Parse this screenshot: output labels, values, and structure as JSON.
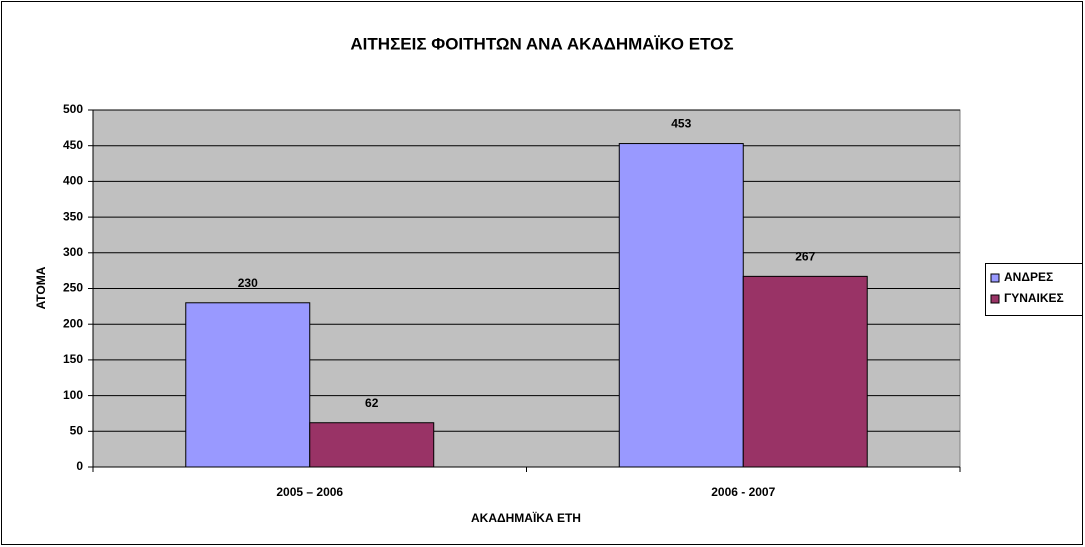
{
  "chart_data": {
    "type": "bar",
    "title": "ΑΙΤΗΣΕΙΣ ΦΟΙΤΗΤΩΝ ΑΝΑ ΑΚΑΔΗΜΑΪΚΟ ΕΤΟΣ",
    "x_label": "ΑΚΑΔΗΜΑΪΚΑ ΕΤΗ",
    "y_label": "ΑΤΟΜΑ",
    "categories": [
      "2005 – 2006",
      "2006 - 2007"
    ],
    "series": [
      {
        "name": "ΑΝΔΡΕΣ",
        "color": "#9999ff",
        "values": [
          230,
          453
        ]
      },
      {
        "name": "ΓΥΝΑΙΚΕΣ",
        "color": "#993366",
        "values": [
          62,
          267
        ]
      }
    ],
    "ylim": [
      0,
      500
    ],
    "yticks": [
      0,
      50,
      100,
      150,
      200,
      250,
      300,
      350,
      400,
      450,
      500
    ],
    "grid": true,
    "legend": "right"
  }
}
